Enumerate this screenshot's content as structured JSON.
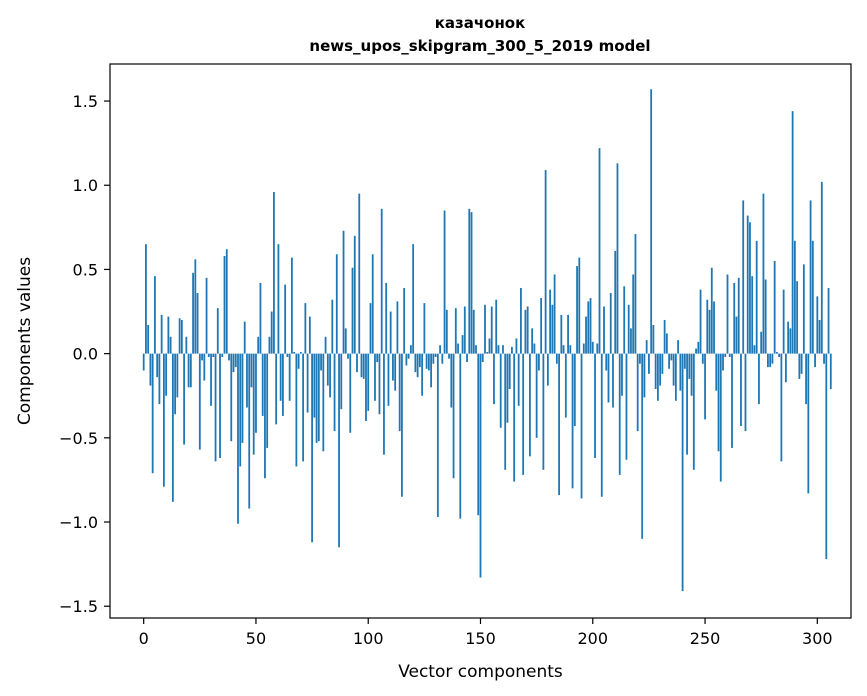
{
  "chart_data": {
    "type": "bar",
    "title_line1": "казачонок",
    "title_line2": "news_upos_skipgram_300_5_2019 model",
    "xlabel": "Vector components",
    "ylabel": "Components values",
    "xlim": [
      -15,
      315
    ],
    "ylim": [
      -1.57,
      1.72
    ],
    "x_ticks": [
      0,
      50,
      100,
      150,
      200,
      250,
      300
    ],
    "y_ticks": [
      -1.5,
      -1.0,
      -0.5,
      0.0,
      0.5,
      1.0,
      1.5
    ],
    "y_tick_labels": [
      "−1.5",
      "−1.0",
      "−0.5",
      "0.0",
      "0.5",
      "1.0",
      "1.5"
    ],
    "bar_color": "#1f77b4",
    "values": [
      -0.1,
      0.65,
      0.17,
      -0.19,
      -0.71,
      0.46,
      -0.14,
      -0.3,
      0.23,
      -0.79,
      -0.25,
      0.22,
      0.1,
      -0.88,
      -0.36,
      -0.26,
      0.21,
      0.2,
      -0.54,
      0.1,
      -0.2,
      -0.2,
      0.48,
      0.56,
      0.36,
      -0.57,
      -0.04,
      -0.16,
      0.45,
      -0.02,
      -0.31,
      -0.02,
      -0.64,
      0.27,
      -0.62,
      -0.02,
      0.58,
      0.62,
      -0.04,
      -0.52,
      -0.11,
      -0.08,
      -1.01,
      -0.67,
      -0.53,
      0.19,
      -0.32,
      -0.92,
      -0.2,
      -0.6,
      -0.47,
      0.1,
      0.42,
      -0.37,
      -0.74,
      -0.56,
      0.1,
      0.25,
      0.96,
      -0.42,
      0.65,
      -0.28,
      -0.37,
      0.41,
      -0.02,
      -0.28,
      0.57,
      0.01,
      -0.67,
      -0.09,
      0.01,
      -0.64,
      0.3,
      -0.35,
      0.22,
      -1.12,
      -0.38,
      -0.53,
      -0.52,
      -0.1,
      -0.58,
      0.1,
      -0.19,
      -0.26,
      0.32,
      -0.46,
      0.59,
      -1.15,
      -0.33,
      0.73,
      0.15,
      -0.03,
      -0.47,
      0.51,
      0.7,
      -0.11,
      0.95,
      -0.14,
      -0.15,
      -0.4,
      -0.34,
      0.3,
      0.59,
      -0.28,
      -0.05,
      -0.36,
      0.86,
      -0.6,
      0.42,
      -0.31,
      0.25,
      -0.16,
      -0.22,
      0.31,
      -0.46,
      -0.85,
      0.39,
      -0.07,
      -0.03,
      0.05,
      0.65,
      -0.11,
      -0.14,
      -0.08,
      -0.25,
      0.3,
      -0.09,
      -0.1,
      -0.2,
      -0.06,
      -0.02,
      -0.97,
      0.05,
      -0.06,
      0.85,
      0.26,
      -0.03,
      -0.32,
      -0.74,
      0.27,
      0.06,
      -0.98,
      0.11,
      0.28,
      -0.05,
      0.86,
      0.84,
      0.26,
      0.05,
      -0.96,
      -1.33,
      -0.05,
      0.29,
      0.01,
      0.09,
      0.28,
      -0.3,
      0.32,
      0.05,
      -0.44,
      0.05,
      -0.69,
      -0.41,
      -0.21,
      0.04,
      -0.76,
      0.09,
      -0.31,
      0.39,
      -0.72,
      0.26,
      0.28,
      -0.61,
      0.15,
      0.06,
      -0.5,
      -0.1,
      0.33,
      -0.69,
      1.09,
      -0.19,
      0.38,
      0.29,
      0.47,
      -0.06,
      -0.84,
      0.23,
      0.05,
      -0.38,
      0.23,
      0.05,
      -0.8,
      -0.43,
      0.52,
      0.57,
      -0.86,
      0.06,
      0.22,
      0.31,
      0.33,
      0.07,
      -0.62,
      0.06,
      1.22,
      -0.85,
      0.28,
      -0.1,
      -0.29,
      0.36,
      -0.32,
      0.61,
      1.13,
      -0.72,
      -0.25,
      0.4,
      -0.63,
      0.29,
      0.15,
      0.47,
      0.71,
      -0.46,
      -0.06,
      -1.1,
      -0.26,
      0.08,
      -0.12,
      1.57,
      0.17,
      -0.21,
      -0.28,
      -0.19,
      -0.12,
      0.2,
      0.12,
      -0.09,
      -0.04,
      -0.19,
      -0.28,
      0.08,
      -0.22,
      -1.41,
      -0.09,
      -0.6,
      -0.15,
      -0.25,
      -0.69,
      0.03,
      0.07,
      0.38,
      -0.06,
      -0.39,
      0.32,
      0.26,
      0.51,
      0.31,
      -0.22,
      -0.58,
      -0.76,
      -0.1,
      -0.02,
      0.47,
      -0.02,
      -0.56,
      0.42,
      0.22,
      0.45,
      -0.43,
      0.91,
      -0.46,
      0.82,
      0.78,
      0.46,
      0.05,
      0.67,
      -0.3,
      0.13,
      0.95,
      0.44,
      -0.08,
      -0.08,
      -0.06,
      0.55,
      0.01,
      -0.02,
      -0.64,
      0.38,
      -0.17,
      0.19,
      0.15,
      1.44,
      0.67,
      0.43,
      -0.15,
      -0.12,
      0.53,
      -0.3,
      -0.83,
      0.91,
      0.67,
      -0.08,
      0.34,
      0.2,
      1.02,
      -0.06,
      -1.22,
      0.39,
      -0.21
    ]
  }
}
